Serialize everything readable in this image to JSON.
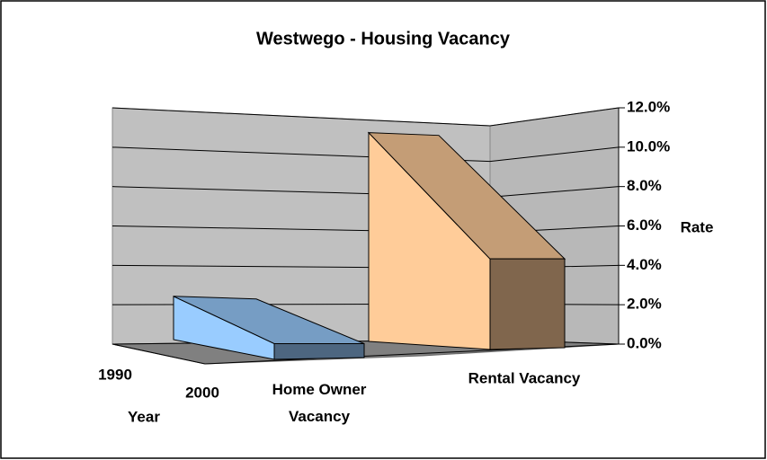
{
  "chart_data": {
    "type": "area3d",
    "title": "Westwego - Housing Vacancy",
    "categories": [
      "Home Owner Vacancy",
      "Rental Vacancy"
    ],
    "colors": [
      "#99ccff",
      "#ffcc99"
    ],
    "series": [
      {
        "name": "1990",
        "values": [
          2.2,
          10.6
        ]
      },
      {
        "name": "2000",
        "values": [
          0.8,
          4.6
        ]
      }
    ],
    "ylabel": "Rate",
    "depth_label": "Year",
    "ylim": [
      0,
      12
    ],
    "yticks": [
      {
        "value": 0,
        "label": "0.0%"
      },
      {
        "value": 2,
        "label": "2.0%"
      },
      {
        "value": 4,
        "label": "4.0%"
      },
      {
        "value": 6,
        "label": "6.0%"
      },
      {
        "value": 8,
        "label": "8.0%"
      },
      {
        "value": 10,
        "label": "10.0%"
      },
      {
        "value": 12,
        "label": "12.0%"
      }
    ],
    "grid": true
  }
}
